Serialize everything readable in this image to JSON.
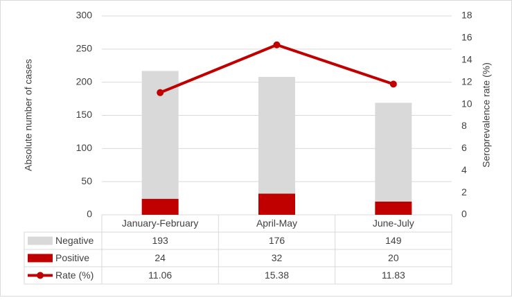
{
  "chart_data": {
    "type": "bar",
    "categories": [
      "January-February",
      "April-May",
      "June-July"
    ],
    "series": [
      {
        "name": "Negative",
        "color": "#d9d9d9",
        "values": [
          193,
          176,
          149
        ]
      },
      {
        "name": "Positive",
        "color": "#c00000",
        "values": [
          24,
          32,
          20
        ]
      },
      {
        "name": "Rate (%)",
        "color": "#c00000",
        "values": [
          11.06,
          15.38,
          11.83
        ],
        "axis": "y2",
        "type": "line"
      }
    ],
    "stacked": true,
    "y_label": "Absolute number of cases",
    "y2_label": "Seroprevalence rate (%)",
    "ylim": [
      0,
      300
    ],
    "yticks": [
      0,
      50,
      100,
      150,
      200,
      250,
      300
    ],
    "y2lim": [
      0,
      18
    ],
    "y2ticks": [
      0,
      2,
      4,
      6,
      8,
      10,
      12,
      14,
      16,
      18
    ],
    "grid": true,
    "data_table": true
  }
}
